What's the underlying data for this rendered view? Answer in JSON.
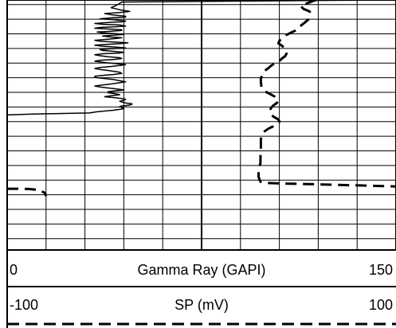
{
  "chart_data": {
    "type": "line",
    "grid": true,
    "depth_axis": {
      "range": [
        0,
        100
      ],
      "direction": "down",
      "labels_shown": false
    },
    "tracks": [
      {
        "name": "Gamma Ray (GAPI)",
        "min_label": "0",
        "max_label": "150",
        "xlim": [
          0,
          150
        ],
        "line_style": "solid",
        "color": "#000000",
        "points": [
          [
            147.2,
            0.0
          ],
          [
            44.2,
            0.8
          ],
          [
            43.4,
            1.4
          ],
          [
            41.8,
            2.3
          ],
          [
            40.1,
            3.1
          ],
          [
            43.4,
            3.9
          ],
          [
            47.3,
            4.6
          ],
          [
            43.4,
            5.0
          ],
          [
            37.6,
            5.4
          ],
          [
            40.1,
            5.9
          ],
          [
            45.7,
            6.5
          ],
          [
            45.7,
            6.8
          ],
          [
            41.8,
            7.0
          ],
          [
            35.8,
            7.5
          ],
          [
            40.9,
            7.9
          ],
          [
            45.7,
            8.4
          ],
          [
            45.0,
            8.7
          ],
          [
            38.9,
            9.0
          ],
          [
            33.8,
            9.4
          ],
          [
            36.8,
            9.7
          ],
          [
            43.4,
            10.0
          ],
          [
            45.7,
            10.4
          ],
          [
            41.8,
            10.7
          ],
          [
            35.8,
            11.0
          ],
          [
            33.8,
            11.3
          ],
          [
            38.9,
            11.6
          ],
          [
            44.2,
            11.9
          ],
          [
            44.2,
            12.2
          ],
          [
            40.1,
            12.5
          ],
          [
            34.7,
            12.8
          ],
          [
            36.8,
            13.2
          ],
          [
            42.4,
            13.5
          ],
          [
            45.0,
            13.8
          ],
          [
            40.9,
            14.1
          ],
          [
            36.8,
            14.4
          ],
          [
            40.1,
            14.8
          ],
          [
            44.2,
            15.1
          ],
          [
            41.8,
            15.4
          ],
          [
            37.6,
            15.8
          ],
          [
            33.8,
            16.1
          ],
          [
            35.8,
            16.5
          ],
          [
            40.9,
            16.8
          ],
          [
            46.6,
            17.1
          ],
          [
            43.4,
            17.5
          ],
          [
            37.6,
            17.8
          ],
          [
            33.8,
            18.1
          ],
          [
            36.8,
            18.5
          ],
          [
            42.4,
            18.9
          ],
          [
            45.7,
            19.2
          ],
          [
            40.1,
            19.5
          ],
          [
            35.8,
            19.8
          ],
          [
            36.8,
            20.2
          ],
          [
            40.9,
            20.5
          ],
          [
            45.0,
            20.9
          ],
          [
            43.4,
            21.2
          ],
          [
            36.8,
            21.5
          ],
          [
            33.8,
            21.9
          ],
          [
            35.8,
            22.3
          ],
          [
            38.9,
            22.7
          ],
          [
            43.4,
            23.1
          ],
          [
            44.2,
            23.4
          ],
          [
            40.9,
            23.8
          ],
          [
            35.8,
            24.1
          ],
          [
            33.8,
            24.5
          ],
          [
            36.8,
            24.9
          ],
          [
            40.1,
            25.3
          ],
          [
            43.4,
            25.6
          ],
          [
            45.7,
            25.9
          ],
          [
            43.4,
            26.2
          ],
          [
            40.1,
            26.6
          ],
          [
            35.8,
            27.0
          ],
          [
            33.8,
            27.4
          ],
          [
            35.8,
            27.8
          ],
          [
            38.9,
            28.2
          ],
          [
            40.9,
            28.5
          ],
          [
            43.4,
            28.9
          ],
          [
            44.2,
            29.4
          ],
          [
            40.9,
            29.8
          ],
          [
            37.6,
            30.1
          ],
          [
            33.8,
            30.5
          ],
          [
            33.8,
            31.0
          ],
          [
            37.6,
            31.4
          ],
          [
            40.9,
            31.8
          ],
          [
            43.4,
            32.3
          ],
          [
            45.7,
            32.7
          ],
          [
            43.4,
            33.1
          ],
          [
            40.1,
            33.6
          ],
          [
            36.8,
            34.0
          ],
          [
            33.8,
            34.4
          ],
          [
            35.8,
            34.8
          ],
          [
            38.9,
            35.2
          ],
          [
            42.4,
            35.6
          ],
          [
            45.0,
            36.0
          ],
          [
            41.8,
            36.3
          ],
          [
            38.9,
            36.7
          ],
          [
            38.9,
            37.1
          ],
          [
            41.8,
            37.5
          ],
          [
            43.4,
            37.9
          ],
          [
            40.1,
            38.3
          ],
          [
            37.6,
            38.7
          ],
          [
            40.9,
            39.0
          ],
          [
            44.2,
            39.4
          ],
          [
            45.7,
            39.7
          ],
          [
            45.0,
            40.1
          ],
          [
            43.4,
            40.5
          ],
          [
            44.2,
            40.8
          ],
          [
            45.7,
            41.2
          ],
          [
            48.1,
            41.5
          ],
          [
            48.1,
            41.8
          ],
          [
            46.6,
            42.1
          ],
          [
            44.2,
            42.4
          ],
          [
            43.4,
            42.6
          ],
          [
            44.2,
            43.0
          ],
          [
            45.0,
            43.5
          ],
          [
            40.9,
            44.1
          ],
          [
            34.7,
            44.7
          ],
          [
            31.7,
            45.2
          ],
          [
            10.1,
            45.6
          ],
          [
            0.0,
            46.0
          ]
        ]
      },
      {
        "name": "SP (mV)",
        "min_label": "-100",
        "max_label": "100",
        "xlim": [
          -100,
          100
        ],
        "line_style": "dashed",
        "color": "#000000",
        "points": [
          [
            58.8,
            0.0
          ],
          [
            55.0,
            1.1
          ],
          [
            50.9,
            2.4
          ],
          [
            52.5,
            3.6
          ],
          [
            55.6,
            4.6
          ],
          [
            55.8,
            5.5
          ],
          [
            55.6,
            6.6
          ],
          [
            55.0,
            7.7
          ],
          [
            53.3,
            8.9
          ],
          [
            51.3,
            10.1
          ],
          [
            49.9,
            11.3
          ],
          [
            48.3,
            12.2
          ],
          [
            45.9,
            13.1
          ],
          [
            43.3,
            14.1
          ],
          [
            42.1,
            15.1
          ],
          [
            40.1,
            16.2
          ],
          [
            39.5,
            17.3
          ],
          [
            41.3,
            18.3
          ],
          [
            42.9,
            19.3
          ],
          [
            43.3,
            20.4
          ],
          [
            43.7,
            21.5
          ],
          [
            42.9,
            22.5
          ],
          [
            41.3,
            23.4
          ],
          [
            40.1,
            24.4
          ],
          [
            37.7,
            25.3
          ],
          [
            35.7,
            26.3
          ],
          [
            34.3,
            27.3
          ],
          [
            32.5,
            28.3
          ],
          [
            31.9,
            29.3
          ],
          [
            31.3,
            30.3
          ],
          [
            30.5,
            31.2
          ],
          [
            30.5,
            32.1
          ],
          [
            30.5,
            33.0
          ],
          [
            30.7,
            34.0
          ],
          [
            30.7,
            34.9
          ],
          [
            31.7,
            35.9
          ],
          [
            33.5,
            36.9
          ],
          [
            35.7,
            37.8
          ],
          [
            37.7,
            38.7
          ],
          [
            38.7,
            39.5
          ],
          [
            39.5,
            40.3
          ],
          [
            38.7,
            41.2
          ],
          [
            36.9,
            42.2
          ],
          [
            35.7,
            43.2
          ],
          [
            35.3,
            44.1
          ],
          [
            35.3,
            45.0
          ],
          [
            35.7,
            46.0
          ],
          [
            37.7,
            47.0
          ],
          [
            39.5,
            47.8
          ],
          [
            40.1,
            48.7
          ],
          [
            38.7,
            49.6
          ],
          [
            36.9,
            50.5
          ],
          [
            34.3,
            51.5
          ],
          [
            32.5,
            52.5
          ],
          [
            31.3,
            53.5
          ],
          [
            30.9,
            54.5
          ],
          [
            30.5,
            55.6
          ],
          [
            30.5,
            56.5
          ],
          [
            30.5,
            57.5
          ],
          [
            30.5,
            58.7
          ],
          [
            30.5,
            59.9
          ],
          [
            30.5,
            61.1
          ],
          [
            30.3,
            62.3
          ],
          [
            30.3,
            63.4
          ],
          [
            30.3,
            64.4
          ],
          [
            30.3,
            65.4
          ],
          [
            29.7,
            66.4
          ],
          [
            29.3,
            67.5
          ],
          [
            29.3,
            68.6
          ],
          [
            29.3,
            69.6
          ],
          [
            29.3,
            70.7
          ],
          [
            29.7,
            71.7
          ],
          [
            30.3,
            72.7
          ],
          [
            33.5,
            73.2
          ],
          [
            41.3,
            73.4
          ],
          [
            52.5,
            73.6
          ],
          [
            62.1,
            73.8
          ],
          [
            72.1,
            74.0
          ],
          [
            82.9,
            74.2
          ],
          [
            90.9,
            74.4
          ],
          [
            96.7,
            74.5
          ],
          [
            100.0,
            74.6
          ]
        ]
      },
      {
        "name": "SP (mV)",
        "line_style": "dashed",
        "color": "#000000",
        "points": [
          [
            -100.0,
            75.5
          ],
          [
            -95.2,
            75.5
          ],
          [
            -88.9,
            75.6
          ],
          [
            -83.9,
            76.0
          ],
          [
            -80.7,
            77.1
          ],
          [
            -80.0,
            78.4
          ]
        ]
      }
    ]
  }
}
